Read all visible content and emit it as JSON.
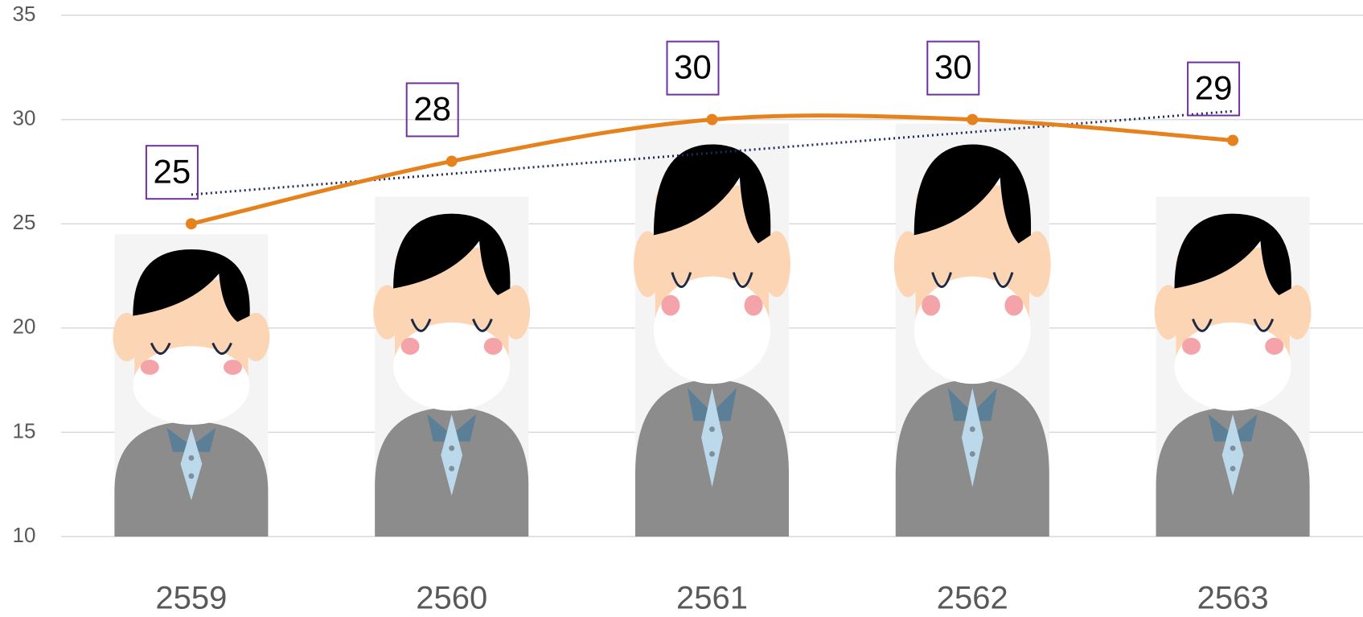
{
  "chart_data": {
    "type": "bar-line",
    "categories": [
      "2559",
      "2560",
      "2561",
      "2562",
      "2563"
    ],
    "series": [
      {
        "type": "bar",
        "color": "#f4f4f4",
        "values": [
          24.5,
          26.3,
          29.8,
          29.8,
          26.3
        ]
      },
      {
        "type": "line",
        "color": "#e6821e",
        "values": [
          25,
          28,
          30,
          30,
          29
        ],
        "trendline": true,
        "trendline_color": "#1f2a5c",
        "label_border_color": "#7030a0"
      }
    ],
    "ylim": [
      10,
      35
    ],
    "yticks": [
      10,
      15,
      20,
      25,
      30,
      35
    ],
    "grid": true
  }
}
